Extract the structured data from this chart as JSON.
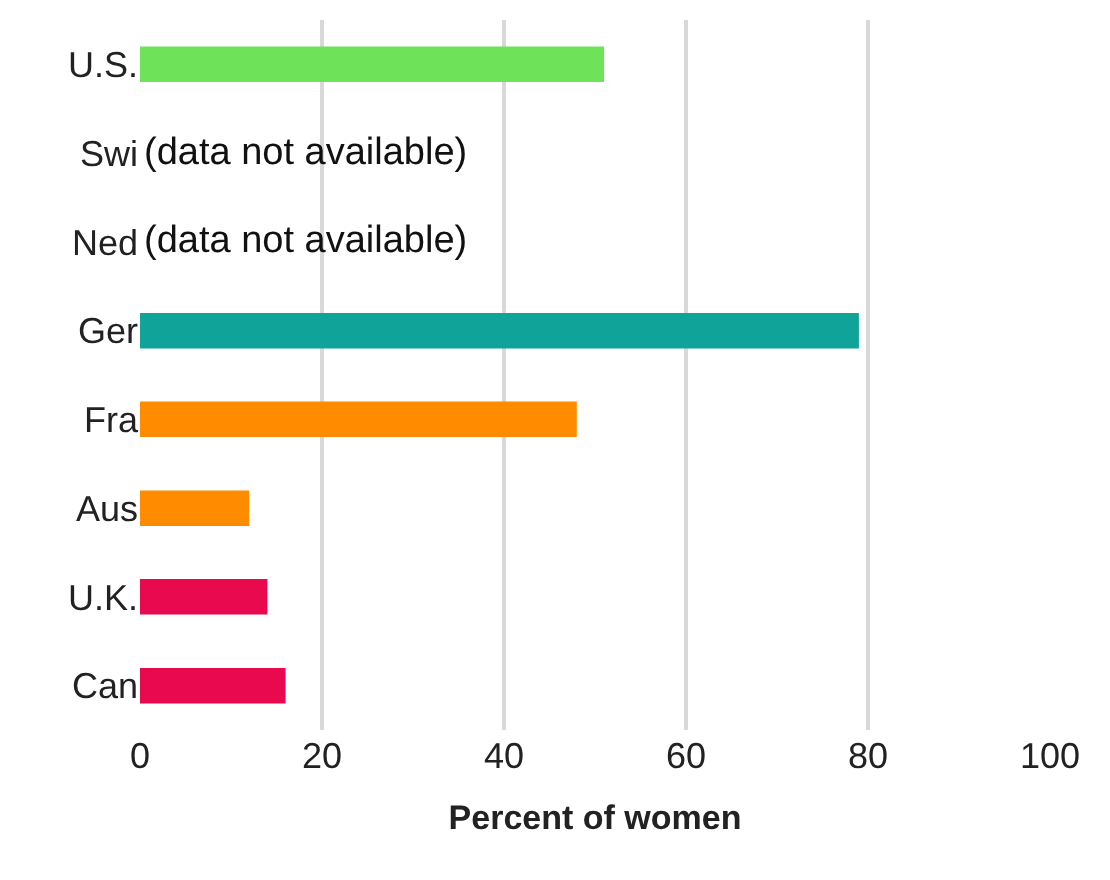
{
  "chart_data": {
    "type": "bar",
    "orientation": "horizontal",
    "xlabel": "Percent of women",
    "categories": [
      "U.S.",
      "Swi",
      "Ned",
      "Ger",
      "Fra",
      "Aus",
      "U.K.",
      "Can"
    ],
    "values": [
      51,
      null,
      null,
      79,
      48,
      12,
      14,
      16
    ],
    "colors": [
      "#6ee35a",
      "#6ee35a",
      "#6ee35a",
      "#0fa39a",
      "#ff8c00",
      "#ff8c00",
      "#e8094f",
      "#e8094f"
    ],
    "xlim": [
      0,
      100
    ],
    "xticks": [
      0,
      20,
      40,
      60,
      80,
      100
    ],
    "grid": "x",
    "annotations": [
      "(data not available)",
      "(data not available)"
    ]
  }
}
